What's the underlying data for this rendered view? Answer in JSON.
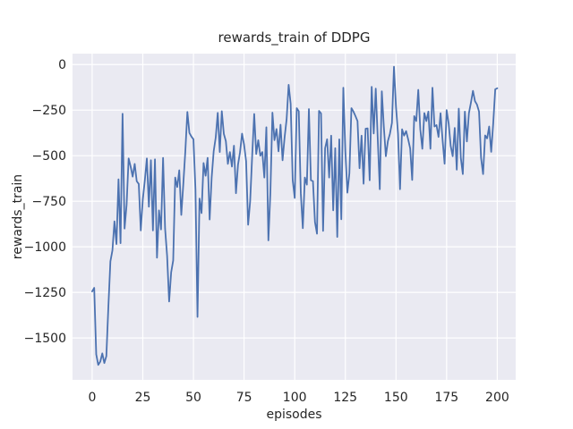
{
  "chart_data": {
    "type": "line",
    "title": "rewards_train of DDPG",
    "xlabel": "episodes",
    "ylabel": "rewards_train",
    "x_ticks": [
      0,
      25,
      50,
      75,
      100,
      125,
      150,
      175,
      200
    ],
    "x_tick_labels": [
      "0",
      "25",
      "50",
      "75",
      "100",
      "125",
      "150",
      "175",
      "200"
    ],
    "y_ticks": [
      0,
      -250,
      -500,
      -750,
      -1000,
      -1250,
      -1500
    ],
    "y_tick_labels": [
      "0",
      "−250",
      "−500",
      "−750",
      "−1000",
      "−1250",
      "−1500"
    ],
    "xlim": [
      -9.7,
      209.1
    ],
    "ylim": [
      -1730,
      60
    ],
    "grid": true,
    "legend": "none",
    "style": "seaborn-darkgrid",
    "colors": {
      "line": "#4c72b0",
      "axes_bg": "#eaeaf2",
      "grid": "#ffffff",
      "text": "#262626",
      "figure_bg": "#ffffff"
    },
    "series": [
      {
        "name": "rewards_train",
        "x_start": 0,
        "x_step": 1,
        "values": [
          -1245,
          -1225,
          -1590,
          -1648,
          -1630,
          -1585,
          -1638,
          -1600,
          -1330,
          -1080,
          -1020,
          -860,
          -985,
          -630,
          -980,
          -270,
          -900,
          -770,
          -515,
          -560,
          -615,
          -545,
          -640,
          -655,
          -910,
          -740,
          -635,
          -515,
          -780,
          -525,
          -910,
          -520,
          -1060,
          -800,
          -905,
          -512,
          -900,
          -1050,
          -1300,
          -1140,
          -1075,
          -620,
          -672,
          -580,
          -825,
          -655,
          -475,
          -260,
          -375,
          -395,
          -410,
          -685,
          -1385,
          -735,
          -815,
          -540,
          -610,
          -512,
          -850,
          -620,
          -475,
          -400,
          -265,
          -480,
          -256,
          -380,
          -420,
          -545,
          -480,
          -560,
          -445,
          -706,
          -550,
          -480,
          -379,
          -440,
          -530,
          -879,
          -750,
          -500,
          -271,
          -491,
          -415,
          -500,
          -480,
          -620,
          -344,
          -965,
          -700,
          -264,
          -415,
          -354,
          -476,
          -330,
          -525,
          -400,
          -300,
          -111,
          -215,
          -635,
          -732,
          -239,
          -256,
          -706,
          -898,
          -620,
          -659,
          -244,
          -635,
          -640,
          -864,
          -928,
          -254,
          -268,
          -913,
          -459,
          -410,
          -620,
          -390,
          -800,
          -459,
          -946,
          -410,
          -849,
          -127,
          -476,
          -703,
          -596,
          -239,
          -258,
          -283,
          -310,
          -569,
          -390,
          -654,
          -352,
          -350,
          -635,
          -122,
          -378,
          -132,
          -410,
          -684,
          -147,
          -342,
          -503,
          -420,
          -380,
          -320,
          -12,
          -232,
          -379,
          -684,
          -355,
          -390,
          -365,
          -410,
          -460,
          -633,
          -283,
          -310,
          -139,
          -356,
          -462,
          -266,
          -310,
          -258,
          -462,
          -127,
          -340,
          -332,
          -397,
          -267,
          -414,
          -544,
          -250,
          -323,
          -446,
          -503,
          -348,
          -577,
          -242,
          -512,
          -601,
          -258,
          -422,
          -267,
          -209,
          -144,
          -201,
          -220,
          -258,
          -512,
          -601,
          -389,
          -405,
          -340,
          -479,
          -323,
          -136,
          -130
        ]
      }
    ]
  }
}
